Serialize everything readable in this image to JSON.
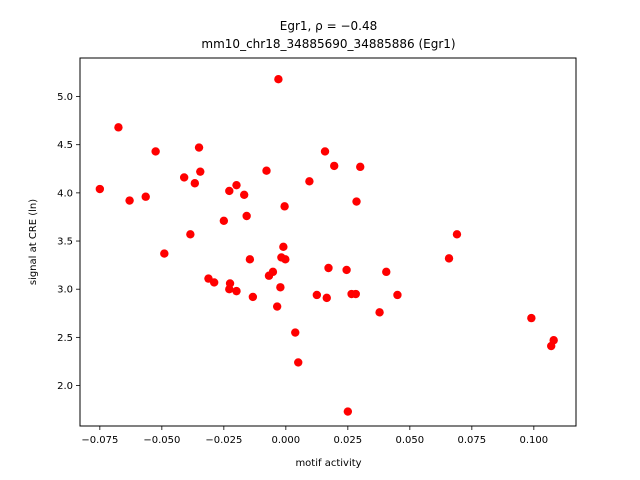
{
  "chart_data": {
    "type": "scatter",
    "title": "Egr1, ρ = −0.48",
    "subtitle": "mm10_chr18_34885690_34885886 (Egr1)",
    "xlabel": "motif activity",
    "ylabel": "signal at CRE (ln)",
    "xlim": [
      -0.083,
      0.117
    ],
    "ylim": [
      1.58,
      5.4
    ],
    "xticks": [
      -0.075,
      -0.05,
      -0.025,
      0.0,
      0.025,
      0.05,
      0.075,
      0.1
    ],
    "xtick_labels": [
      "−0.075",
      "−0.050",
      "−0.025",
      "0.000",
      "0.025",
      "0.050",
      "0.075",
      "0.100"
    ],
    "yticks": [
      2.0,
      2.5,
      3.0,
      3.5,
      4.0,
      4.5,
      5.0
    ],
    "ytick_labels": [
      "2.0",
      "2.5",
      "3.0",
      "3.5",
      "4.0",
      "4.5",
      "5.0"
    ],
    "grid": false,
    "marker_color": "#ff0000",
    "points": [
      {
        "x": -0.075,
        "y": 4.04
      },
      {
        "x": -0.0675,
        "y": 4.68
      },
      {
        "x": -0.063,
        "y": 3.92
      },
      {
        "x": -0.0565,
        "y": 3.96
      },
      {
        "x": -0.0525,
        "y": 4.43
      },
      {
        "x": -0.049,
        "y": 3.37
      },
      {
        "x": -0.041,
        "y": 4.16
      },
      {
        "x": -0.0385,
        "y": 3.57
      },
      {
        "x": -0.0367,
        "y": 4.1
      },
      {
        "x": -0.035,
        "y": 4.47
      },
      {
        "x": -0.0345,
        "y": 4.22
      },
      {
        "x": -0.0312,
        "y": 3.11
      },
      {
        "x": -0.0289,
        "y": 3.07
      },
      {
        "x": -0.025,
        "y": 3.71
      },
      {
        "x": -0.0228,
        "y": 4.02
      },
      {
        "x": -0.0228,
        "y": 3.0
      },
      {
        "x": -0.0225,
        "y": 3.06
      },
      {
        "x": -0.0199,
        "y": 4.08
      },
      {
        "x": -0.0199,
        "y": 2.98
      },
      {
        "x": -0.0168,
        "y": 3.98
      },
      {
        "x": -0.0158,
        "y": 3.76
      },
      {
        "x": -0.0145,
        "y": 3.31
      },
      {
        "x": -0.0133,
        "y": 2.92
      },
      {
        "x": -0.0078,
        "y": 4.23
      },
      {
        "x": -0.0068,
        "y": 3.14
      },
      {
        "x": -0.0052,
        "y": 3.18
      },
      {
        "x": -0.0035,
        "y": 2.82
      },
      {
        "x": -0.003,
        "y": 5.18
      },
      {
        "x": -0.0022,
        "y": 3.02
      },
      {
        "x": -0.0018,
        "y": 3.33
      },
      {
        "x": -0.001,
        "y": 3.44
      },
      {
        "x": -0.0005,
        "y": 3.86
      },
      {
        "x": -0.0002,
        "y": 3.31
      },
      {
        "x": 0.0038,
        "y": 2.55
      },
      {
        "x": 0.005,
        "y": 2.24
      },
      {
        "x": 0.0095,
        "y": 4.12
      },
      {
        "x": 0.0125,
        "y": 2.94
      },
      {
        "x": 0.0158,
        "y": 4.43
      },
      {
        "x": 0.0165,
        "y": 2.91
      },
      {
        "x": 0.0172,
        "y": 3.22
      },
      {
        "x": 0.0195,
        "y": 4.28
      },
      {
        "x": 0.0245,
        "y": 3.2
      },
      {
        "x": 0.025,
        "y": 1.73
      },
      {
        "x": 0.0265,
        "y": 2.95
      },
      {
        "x": 0.0282,
        "y": 2.95
      },
      {
        "x": 0.0285,
        "y": 3.91
      },
      {
        "x": 0.03,
        "y": 4.27
      },
      {
        "x": 0.0378,
        "y": 2.76
      },
      {
        "x": 0.0405,
        "y": 3.18
      },
      {
        "x": 0.045,
        "y": 2.94
      },
      {
        "x": 0.0658,
        "y": 3.32
      },
      {
        "x": 0.069,
        "y": 3.57
      },
      {
        "x": 0.099,
        "y": 2.7
      },
      {
        "x": 0.107,
        "y": 2.41
      },
      {
        "x": 0.108,
        "y": 2.47
      }
    ]
  }
}
